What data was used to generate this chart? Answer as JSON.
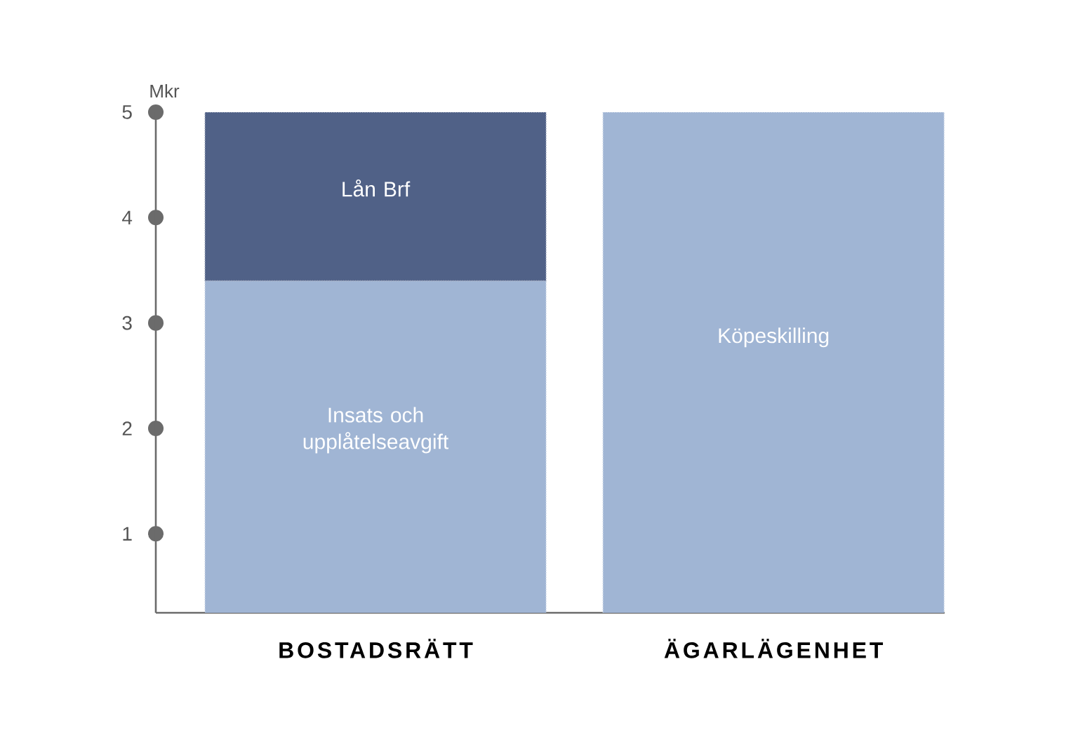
{
  "chart_data": {
    "type": "bar",
    "stacked": true,
    "categories": [
      "BOSTADSRÄTT",
      "ÄGARLÄGENHET"
    ],
    "ylabel": "Mkr",
    "ylim": [
      0.25,
      5
    ],
    "yticks": [
      1,
      2,
      3,
      4,
      5
    ],
    "series": [
      {
        "name": "Insats och upplåtelseavgift",
        "color": "#a0b5d4",
        "values": [
          3.4,
          null
        ]
      },
      {
        "name": "Lån Brf",
        "color": "#506187",
        "values": [
          1.6,
          null
        ]
      },
      {
        "name": "Köpeskilling",
        "color": "#a0b5d4",
        "values": [
          null,
          5
        ]
      }
    ]
  }
}
